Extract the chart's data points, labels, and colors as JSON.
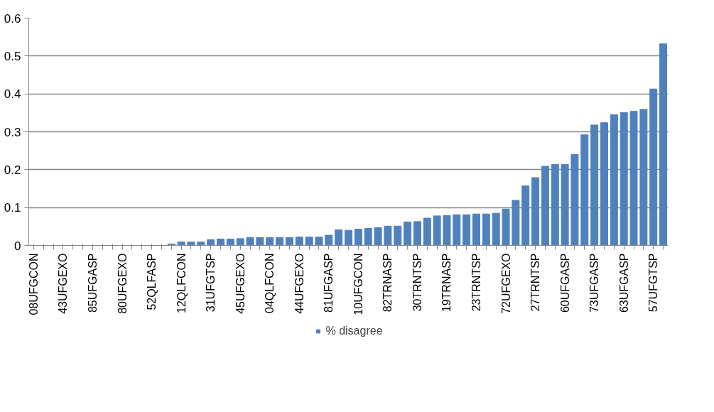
{
  "chart_data": {
    "type": "bar",
    "categories": [
      "08UFGCON",
      null,
      null,
      "43UFGEXO",
      null,
      null,
      "85UFGASP",
      null,
      null,
      "80UFGEXO",
      null,
      null,
      "52QLFASP",
      null,
      null,
      "12QLFCON",
      null,
      null,
      "31UFGTSP",
      null,
      null,
      "45UFGEXO",
      null,
      null,
      "04QLFCON",
      null,
      null,
      "44UFGEXO",
      null,
      null,
      "81UFGASP",
      null,
      null,
      "10UFGCON",
      null,
      null,
      "82TRNASP",
      null,
      null,
      "30TRNTSP",
      null,
      null,
      "19TRNASP",
      null,
      null,
      "23TRNTSP",
      null,
      null,
      "72UFGEXO",
      null,
      null,
      "27TRNTSP",
      null,
      null,
      "60UFGASP",
      null,
      null,
      "73UFGASP",
      null,
      null,
      "63UFGASP",
      null,
      null,
      "57UFGTSP",
      null
    ],
    "series": [
      {
        "name": "% disagree",
        "color": "#4f81bd",
        "values": [
          0,
          0,
          0,
          0,
          0,
          0,
          0,
          0,
          0,
          0,
          0,
          0,
          0,
          0,
          0.004,
          0.009,
          0.009,
          0.009,
          0.015,
          0.017,
          0.017,
          0.018,
          0.021,
          0.021,
          0.021,
          0.021,
          0.021,
          0.022,
          0.022,
          0.022,
          0.027,
          0.041,
          0.04,
          0.043,
          0.045,
          0.047,
          0.051,
          0.051,
          0.062,
          0.063,
          0.072,
          0.078,
          0.079,
          0.081,
          0.081,
          0.083,
          0.083,
          0.085,
          0.096,
          0.119,
          0.157,
          0.179,
          0.209,
          0.214,
          0.214,
          0.24,
          0.292,
          0.318,
          0.324,
          0.345,
          0.351,
          0.354,
          0.359,
          0.413,
          0.532
        ]
      }
    ],
    "ylim": [
      0,
      0.6
    ],
    "yticks": [
      0,
      0.1,
      0.2,
      0.3,
      0.4,
      0.5,
      0.6
    ],
    "grid": "y",
    "legend": "bottom"
  }
}
